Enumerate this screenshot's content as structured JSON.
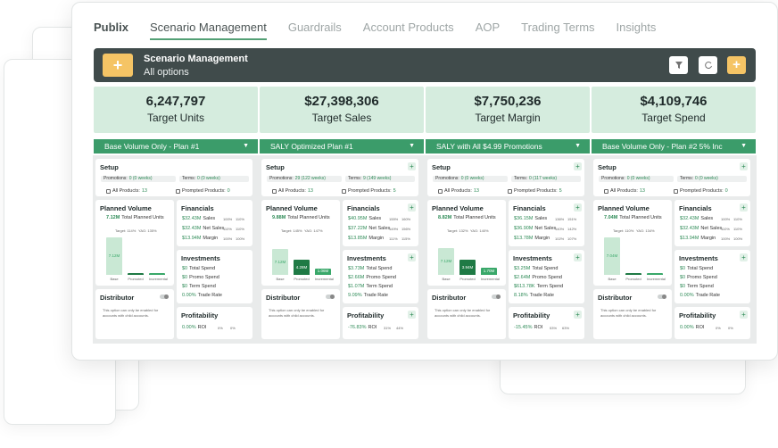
{
  "tabs": {
    "brand": "Publix",
    "items": [
      "Scenario Management",
      "Guardrails",
      "Account Products",
      "AOP",
      "Trading Terms",
      "Insights"
    ]
  },
  "banner": {
    "title": "Scenario Management",
    "subtitle": "All options",
    "icons": [
      "filter-icon",
      "refresh-icon",
      "add-icon"
    ]
  },
  "kpis": [
    {
      "value": "6,247,797",
      "label": "Target Units"
    },
    {
      "value": "$27,398,306",
      "label": "Target Sales"
    },
    {
      "value": "$7,750,236",
      "label": "Target Margin"
    },
    {
      "value": "$4,109,746",
      "label": "Target Spend"
    }
  ],
  "labels": {
    "setup": "Setup",
    "planned_volume": "Planned Volume",
    "financials": "Financials",
    "investments": "Investments",
    "profitability": "Profitability",
    "distributor": "Distributor",
    "promotions": "Promotions:",
    "terms": "Terms:",
    "all_products": "All Products:",
    "prompted_products": "Prompted Products:",
    "total_planned_units": "Total Planned Units",
    "sales": "Sales",
    "net_sales": "Net Sales",
    "margin": "Margin",
    "total_spend": "Total Spend",
    "promo_spend": "Promo Spend",
    "term_spend": "Term Spend",
    "trade_rate": "Trade Rate",
    "roi": "ROI",
    "base": "Base",
    "promoted": "Promoted",
    "incremental": "Incremental",
    "distributor_note": "This option can only be enabled for accounts with child accounts."
  },
  "plans": [
    {
      "name": "Base Volume Only - Plan #1",
      "promotions": "0 (0 weeks)",
      "terms": "0 (0 weeks)",
      "all_products": "13",
      "prompted_products": "0",
      "total_units": "7.12M",
      "target": "Target: 114%",
      "yag": "YAG: 135%",
      "bars": [
        {
          "v": "7.12M",
          "pct": 100
        },
        {
          "v": "0",
          "pct": 3
        },
        {
          "v": "0",
          "pct": 3
        }
      ],
      "sales": "$32.43M",
      "net_sales": "$32.43M",
      "margin": "$13.94M",
      "total_spend": "$0",
      "promo_spend": "$0",
      "term_spend": "$0",
      "trade_rate": "0.00%",
      "roi": "0.00%",
      "sales_a": "100%",
      "sales_b": "110%",
      "net_a": "110%",
      "net_b": "110%",
      "margin_a": "100%",
      "margin_b": "100%",
      "roi_a": "0%",
      "roi_b": "0%"
    },
    {
      "name": "SALY Optimized Plan #1",
      "promotions": "29 (122 weeks)",
      "terms": "9 (149 weeks)",
      "all_products": "13",
      "prompted_products": "5",
      "total_units": "9.88M",
      "target": "Target: 145%",
      "yag": "YAG: 147%",
      "bars": [
        {
          "v": "7.12M",
          "pct": 68
        },
        {
          "v": "4.28M",
          "pct": 40
        },
        {
          "v": "1.06M",
          "pct": 16
        }
      ],
      "sales": "$40.95M",
      "net_sales": "$37.22M",
      "margin": "$13.85M",
      "total_spend": "$3.73M",
      "promo_spend": "$2.66M",
      "term_spend": "$1.07M",
      "trade_rate": "9.09%",
      "roi": "-76.83%",
      "sales_a": "155%",
      "sales_b": "160%",
      "net_a": "149%",
      "net_b": "156%",
      "margin_a": "111%",
      "margin_b": "115%",
      "roi_a": "31%",
      "roi_b": "44%"
    },
    {
      "name": "SALY with All $4.99 Promotions",
      "promotions": "0 (0 weeks)",
      "terms": "0 (117 weeks)",
      "all_products": "13",
      "prompted_products": "5",
      "total_units": "8.82M",
      "target": "Target: 132%",
      "yag": "YAG: 140%",
      "bars": [
        {
          "v": "7.12M",
          "pct": 72
        },
        {
          "v": "3.94M",
          "pct": 40
        },
        {
          "v": "1.70M",
          "pct": 18
        }
      ],
      "sales": "$36.15M",
      "net_sales": "$36.90M",
      "margin": "$13.78M",
      "total_spend": "$3.25M",
      "promo_spend": "$2.64M",
      "term_spend": "$613.78K",
      "trade_rate": "8.18%",
      "roi": "-15.45%",
      "sales_a": "136%",
      "sales_b": "151%",
      "net_a": "140%",
      "net_b": "142%",
      "margin_a": "102%",
      "margin_b": "107%",
      "roi_a": "53%",
      "roi_b": "63%"
    },
    {
      "name": "Base Volume Only - Plan #2 5% Inc",
      "promotions": "0 (0 weeks)",
      "terms": "0 (0 weeks)",
      "all_products": "13",
      "prompted_products": "0",
      "total_units": "7.04M",
      "target": "Target: 110%",
      "yag": "YAG: 134%",
      "bars": [
        {
          "v": "7.04M",
          "pct": 100
        },
        {
          "v": "0",
          "pct": 3
        },
        {
          "v": "0",
          "pct": 3
        }
      ],
      "sales": "$32.43M",
      "net_sales": "$32.43M",
      "margin": "$13.94M",
      "total_spend": "$0",
      "promo_spend": "$0",
      "term_spend": "$0",
      "trade_rate": "0.00%",
      "roi": "0.00%",
      "sales_a": "100%",
      "sales_b": "110%",
      "net_a": "110%",
      "net_b": "110%",
      "margin_a": "100%",
      "margin_b": "100%",
      "roi_a": "0%",
      "roi_b": "0%"
    }
  ]
}
